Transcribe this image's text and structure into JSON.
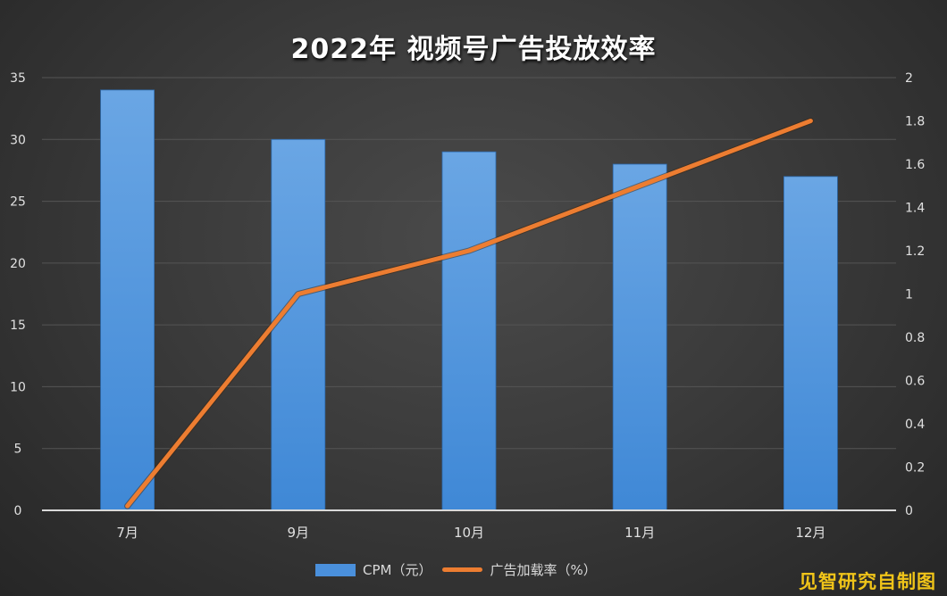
{
  "chart_data": {
    "type": "bar+line",
    "title": "2022年 视频号广告投放效率",
    "categories": [
      "7月",
      "9月",
      "10月",
      "11月",
      "12月"
    ],
    "series": [
      {
        "name": "CPM（元）",
        "type": "bar",
        "axis": "left",
        "values": [
          34,
          30,
          29,
          28,
          27
        ],
        "color": "#4a90dc"
      },
      {
        "name": "广告加载率（%）",
        "type": "line",
        "axis": "right",
        "values": [
          0.02,
          1.0,
          1.2,
          1.5,
          1.8
        ],
        "color": "#ed7d31"
      }
    ],
    "left_axis": {
      "ylim": [
        0,
        35
      ],
      "ticks": [
        "0",
        "5",
        "10",
        "15",
        "20",
        "25",
        "30",
        "35"
      ]
    },
    "right_axis": {
      "ylim": [
        0,
        2
      ],
      "ticks": [
        "0",
        "0.2",
        "0.4",
        "0.6",
        "0.8",
        "1",
        "1.2",
        "1.4",
        "1.6",
        "1.8",
        "2"
      ]
    },
    "grid": true,
    "legend_position": "bottom"
  },
  "legend": {
    "bar_label": "CPM（元）",
    "line_label": "广告加载率（%）"
  },
  "credit": "见智研究自制图"
}
